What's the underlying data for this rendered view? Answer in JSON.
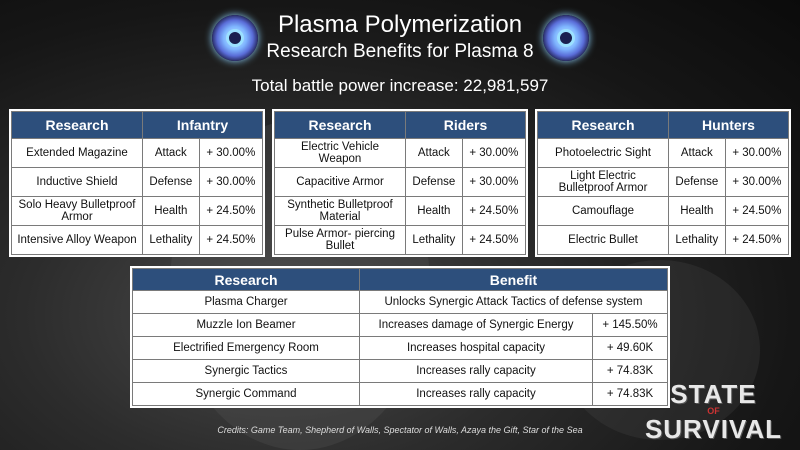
{
  "header": {
    "title": "Plasma Polymerization",
    "subtitle": "Research Benefits for Plasma 8",
    "total": "Total battle power increase: 22,981,597"
  },
  "infantry": {
    "col_research": "Research",
    "col_type": "Infantry",
    "rows": [
      {
        "name": "Extended Magazine",
        "stat": "Attack",
        "value": "+ 30.00%"
      },
      {
        "name": "Inductive Shield",
        "stat": "Defense",
        "value": "+ 30.00%"
      },
      {
        "name": "Solo Heavy Bulletproof Armor",
        "stat": "Health",
        "value": "+ 24.50%"
      },
      {
        "name": "Intensive Alloy Weapon",
        "stat": "Lethality",
        "value": "+ 24.50%"
      }
    ]
  },
  "riders": {
    "col_research": "Research",
    "col_type": "Riders",
    "rows": [
      {
        "name": "Electric Vehicle Weapon",
        "stat": "Attack",
        "value": "+ 30.00%"
      },
      {
        "name": "Capacitive Armor",
        "stat": "Defense",
        "value": "+ 30.00%"
      },
      {
        "name": "Synthetic Bulletproof Material",
        "stat": "Health",
        "value": "+ 24.50%"
      },
      {
        "name": "Pulse Armor- piercing Bullet",
        "stat": "Lethality",
        "value": "+ 24.50%"
      }
    ]
  },
  "hunters": {
    "col_research": "Research",
    "col_type": "Hunters",
    "rows": [
      {
        "name": "Photoelectric Sight",
        "stat": "Attack",
        "value": "+ 30.00%"
      },
      {
        "name": "Light Electric Bulletproof Armor",
        "stat": "Defense",
        "value": "+ 30.00%"
      },
      {
        "name": "Camouflage",
        "stat": "Health",
        "value": "+ 24.50%"
      },
      {
        "name": "Electric Bullet",
        "stat": "Lethality",
        "value": "+ 24.50%"
      }
    ]
  },
  "benefits": {
    "col_research": "Research",
    "col_benefit": "Benefit",
    "rows": [
      {
        "name": "Plasma Charger",
        "benefit": "Unlocks Synergic Attack Tactics of defense system",
        "value": ""
      },
      {
        "name": "Muzzle Ion Beamer",
        "benefit": "Increases damage of Synergic Energy",
        "value": "+ 145.50%"
      },
      {
        "name": "Electrified Emergency Room",
        "benefit": "Increases hospital capacity",
        "value": "+ 49.60K"
      },
      {
        "name": "Synergic Tactics",
        "benefit": "Increases rally capacity",
        "value": "+ 74.83K"
      },
      {
        "name": "Synergic Command",
        "benefit": "Increases rally capacity",
        "value": "+ 74.83K"
      }
    ]
  },
  "credits": "Credits: Game Team, Shepherd of Walls, Spectator of Walls, Azaya the Gift, Star of the Sea",
  "logo": {
    "line1": "STATE",
    "of": "OF",
    "line2": "SURVIVAL"
  },
  "colors": {
    "header_bg": "#2d4f7c"
  }
}
